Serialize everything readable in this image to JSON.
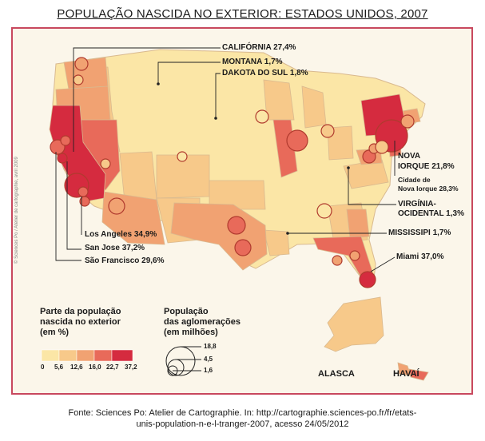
{
  "title": "POPULAÇÃO NASCIDA NO EXTERIOR: ESTADOS UNIDOS, 2007",
  "colors": {
    "class1": "#fbe6a6",
    "class2": "#f7c98a",
    "class3": "#f1a272",
    "class4": "#e86a5a",
    "class5": "#d52b3f",
    "frame": "#c8485e"
  },
  "labels": {
    "california": "CALIFÓRNIA 27,4%",
    "montana": "MONTANA 1,7%",
    "dakota": "DAKOTA DO SUL 1,8%",
    "ny_1": "NOVA",
    "ny_2": "IORQUE 21,8%",
    "ny_city_1": "Cidade de",
    "ny_city_2": "Nova Iorque 28,3%",
    "wv_1": "VIRGÍNIA-",
    "wv_2": "OCIDENTAL 1,3%",
    "mississippi": "MISSISSIPI 1,7%",
    "miami": "Miami 37,0%",
    "los_angeles": "Los Angeles 34,9%",
    "san_jose": "San Jose 37,2%",
    "san_francisco": "São Francisco 29,6%"
  },
  "legend": {
    "share_title_1": "Parte da população",
    "share_title_2": "nascida no exterior",
    "share_title_3": "(em %)",
    "ticks": [
      "0",
      "5,6",
      "12,6",
      "16,0",
      "22,7",
      "37,2"
    ],
    "pop_title_1": "População",
    "pop_title_2": "das aglomerações",
    "pop_title_3": "(em milhões)",
    "pop_values": [
      "18,8",
      "4,5",
      "1,6"
    ]
  },
  "regions": {
    "alaska": "ALASCA",
    "hawaii": "HAVAÍ"
  },
  "credit": "© Sciences Po / Atelier de cartographie, avril 2009",
  "source": {
    "line1": "Fonte: Sciences Po: Atelier de Cartographie. In: http://cartographie.sciences-po.fr/fr/etats-",
    "line2": "unis-population-n-e-l-tranger-2007, acesso 24/05/2012"
  }
}
